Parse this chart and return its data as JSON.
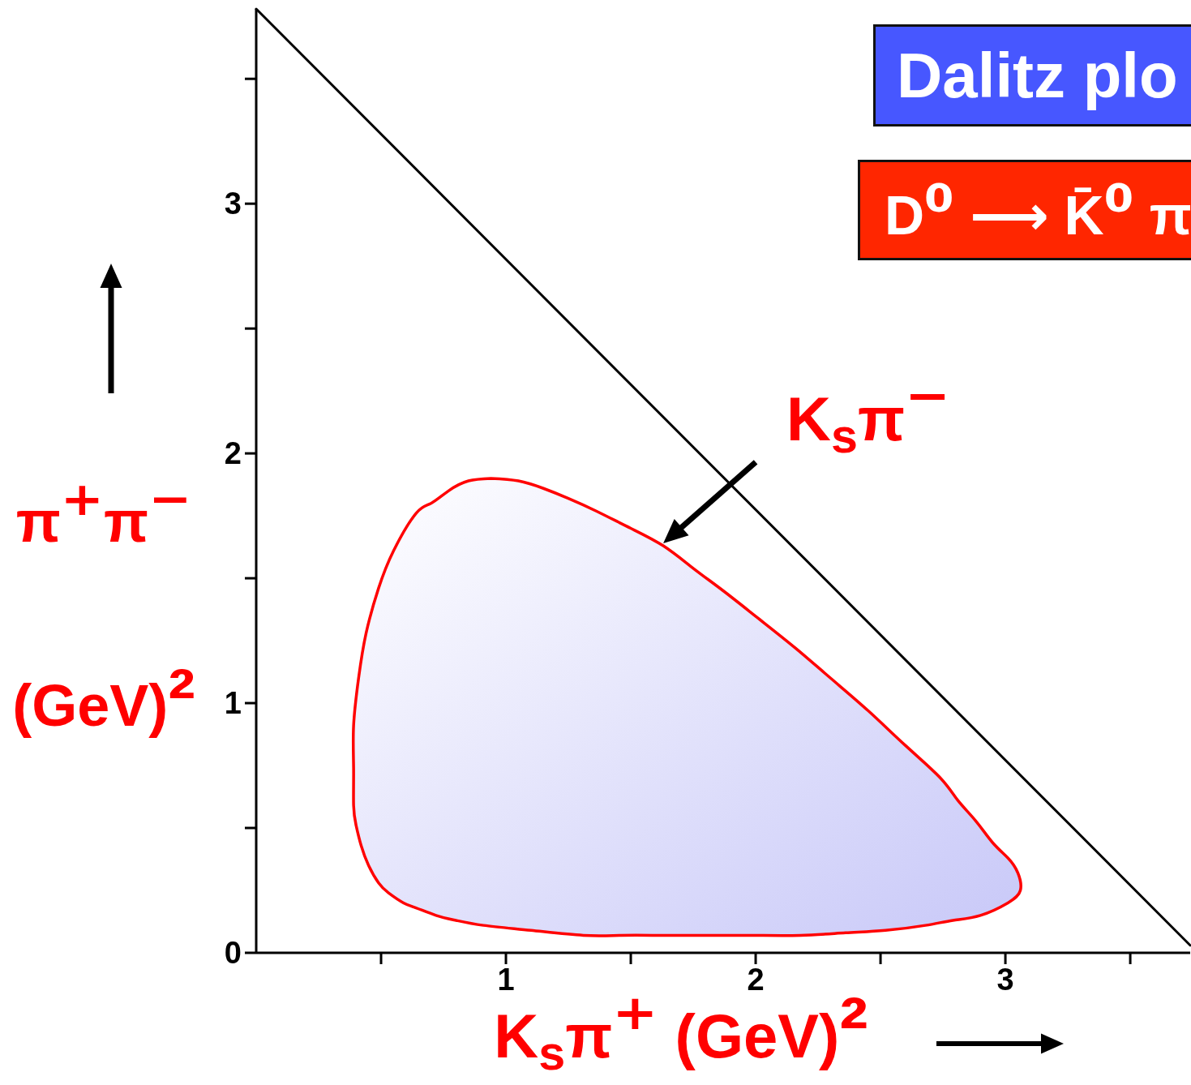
{
  "chart_data": {
    "type": "line",
    "title": "Dalitz plo",
    "subtitle": "D⁰ ⟶ K̄⁰ π",
    "xlabel": "K$_{s}$π⁺ (GeV)²",
    "ylabel": "π⁺π⁻ (GeV)²",
    "annotations": [
      {
        "text": "K$_{s}$π⁻",
        "x": 1.63,
        "y": 1.64
      }
    ],
    "xlim": [
      0,
      3.74
    ],
    "ylim": [
      0,
      3.78
    ],
    "xticks": [
      {
        "value": 0.5,
        "label": null
      },
      1,
      {
        "value": 1.5,
        "label": null
      },
      2,
      {
        "value": 2.5,
        "label": null
      },
      3,
      {
        "value": 3.5,
        "label": null
      }
    ],
    "yticks": [
      0,
      {
        "value": 0.5,
        "label": null
      },
      1,
      {
        "value": 1.5,
        "label": null
      },
      2,
      {
        "value": 2.5,
        "label": null
      },
      3,
      {
        "value": 3.5,
        "label": null
      }
    ],
    "series": [
      {
        "color": "#000000",
        "x": [
          0,
          3.74
        ],
        "values": [
          3.78,
          0.03
        ]
      },
      {
        "type": "area",
        "color": "#ff0000",
        "x": [
          0.94,
          1.05,
          1.15,
          1.25,
          1.36,
          1.5,
          1.63,
          1.75,
          1.87,
          2.01,
          2.16,
          2.3,
          2.45,
          2.6,
          2.74,
          2.81,
          2.88,
          2.95,
          3.01,
          3.05,
          3.06,
          3.01,
          2.9,
          2.79,
          2.68,
          2.52,
          2.36,
          2.18,
          1.99,
          1.8,
          1.62,
          1.46,
          1.31,
          1.1,
          0.91,
          0.8,
          0.72,
          0.64,
          0.59,
          0.53,
          0.49,
          0.45,
          0.42,
          0.4,
          0.39,
          0.39,
          0.39,
          0.41,
          0.44,
          0.49,
          0.55,
          0.64,
          0.7,
          0.77,
          0.85,
          0.94
        ],
        "values": [
          1.9,
          1.89,
          1.86,
          1.82,
          1.77,
          1.7,
          1.63,
          1.54,
          1.45,
          1.34,
          1.22,
          1.1,
          0.97,
          0.83,
          0.7,
          0.61,
          0.53,
          0.44,
          0.38,
          0.32,
          0.25,
          0.2,
          0.15,
          0.13,
          0.11,
          0.09,
          0.08,
          0.07,
          0.07,
          0.07,
          0.07,
          0.07,
          0.07,
          0.09,
          0.11,
          0.13,
          0.15,
          0.18,
          0.2,
          0.24,
          0.28,
          0.35,
          0.43,
          0.51,
          0.59,
          0.74,
          0.91,
          1.1,
          1.28,
          1.46,
          1.61,
          1.76,
          1.8,
          1.85,
          1.89,
          1.9
        ]
      }
    ]
  }
}
